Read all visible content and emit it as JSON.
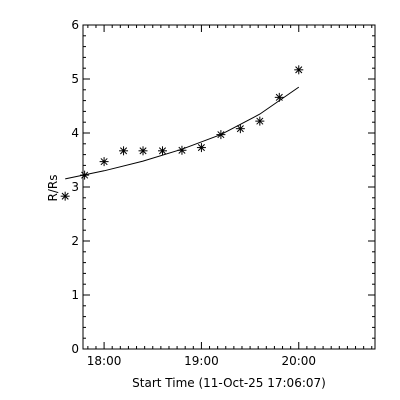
{
  "chart_data": {
    "type": "scatter",
    "xlabel": "Start Time (11-Oct-25 17:06:07)",
    "ylabel": "R/Rs",
    "xlim_minutes_since_17_00": [
      47,
      227
    ],
    "ylim": [
      0,
      6
    ],
    "x_ticks": [
      {
        "label": "18:00",
        "value": "18:00"
      },
      {
        "label": "19:00",
        "value": "19:00"
      },
      {
        "label": "20:00",
        "value": "20:00"
      }
    ],
    "y_ticks": [
      "0",
      "1",
      "2",
      "3",
      "4",
      "5",
      "6"
    ],
    "points": [
      {
        "x": "17:36",
        "y": 2.83
      },
      {
        "x": "17:48",
        "y": 3.22
      },
      {
        "x": "18:00",
        "y": 3.47
      },
      {
        "x": "18:12",
        "y": 3.67
      },
      {
        "x": "18:24",
        "y": 3.67
      },
      {
        "x": "18:36",
        "y": 3.67
      },
      {
        "x": "18:48",
        "y": 3.68
      },
      {
        "x": "19:00",
        "y": 3.73
      },
      {
        "x": "19:12",
        "y": 3.97
      },
      {
        "x": "19:24",
        "y": 4.08
      },
      {
        "x": "19:36",
        "y": 4.22
      },
      {
        "x": "19:48",
        "y": 4.66
      },
      {
        "x": "20:00",
        "y": 5.17
      }
    ],
    "fit": {
      "x": [
        "17:36",
        "18:00",
        "18:24",
        "18:48",
        "19:12",
        "19:36",
        "20:00"
      ],
      "y": [
        3.15,
        3.3,
        3.48,
        3.7,
        3.97,
        4.35,
        4.85
      ]
    },
    "marker": "asterisk",
    "grid": false
  }
}
